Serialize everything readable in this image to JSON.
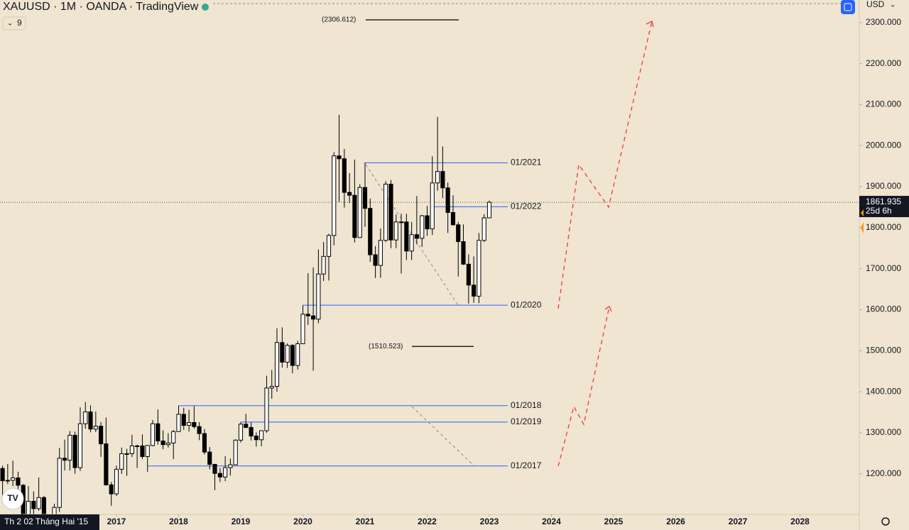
{
  "header": {
    "title": "XAUUSD · 1M · OANDA · TradingView",
    "indicator_count": "9",
    "currency": "USD",
    "crosshair_date": "Th 2 02 Tháng Hai '15"
  },
  "chart_data": {
    "type": "candlestick",
    "x": [
      2015.083,
      2015.167,
      2015.25,
      2015.333,
      2015.417,
      2015.5,
      2015.583,
      2015.667,
      2015.75,
      2015.833,
      2015.917,
      2016,
      2016.083,
      2016.167,
      2016.25,
      2016.333,
      2016.417,
      2016.5,
      2016.583,
      2016.667,
      2016.75,
      2016.833,
      2016.917,
      2017,
      2017.083,
      2017.167,
      2017.25,
      2017.333,
      2017.417,
      2017.5,
      2017.583,
      2017.667,
      2017.75,
      2017.833,
      2017.917,
      2018,
      2018.083,
      2018.167,
      2018.25,
      2018.333,
      2018.417,
      2018.5,
      2018.583,
      2018.667,
      2018.75,
      2018.833,
      2018.917,
      2019,
      2019.083,
      2019.167,
      2019.25,
      2019.333,
      2019.417,
      2019.5,
      2019.583,
      2019.667,
      2019.75,
      2019.833,
      2019.917,
      2020,
      2020.083,
      2020.167,
      2020.25,
      2020.333,
      2020.417,
      2020.5,
      2020.583,
      2020.667,
      2020.75,
      2020.833,
      2020.917,
      2021,
      2021.083,
      2021.167,
      2021.25,
      2021.333,
      2021.417,
      2021.5,
      2021.583,
      2021.667,
      2021.75,
      2021.833,
      2021.917,
      2022,
      2022.083,
      2022.167,
      2022.25,
      2022.333,
      2022.417,
      2022.5,
      2022.583,
      2022.667,
      2022.75,
      2022.833,
      2022.917,
      2023
    ],
    "open": [
      1283,
      1213,
      1183,
      1184,
      1190,
      1172,
      1095,
      1133,
      1115,
      1142,
      1065,
      1061,
      1118,
      1238,
      1233,
      1294,
      1215,
      1322,
      1351,
      1309,
      1316,
      1273,
      1173,
      1151,
      1211,
      1249,
      1249,
      1268,
      1268,
      1242,
      1269,
      1322,
      1280,
      1271,
      1275,
      1303,
      1345,
      1318,
      1325,
      1315,
      1298,
      1253,
      1223,
      1201,
      1192,
      1215,
      1222,
      1282,
      1321,
      1313,
      1292,
      1283,
      1305,
      1409,
      1413,
      1520,
      1472,
      1513,
      1464,
      1517,
      1589,
      1585,
      1577,
      1687,
      1730,
      1781,
      1975,
      1968,
      1886,
      1879,
      1776,
      1898,
      1847,
      1734,
      1708,
      1769,
      1906,
      1770,
      1814,
      1814,
      1743,
      1783,
      1774,
      1829,
      1797,
      1909,
      1937,
      1897,
      1837,
      1807,
      1766,
      1711,
      1660,
      1633,
      1769,
      1824
    ],
    "high": [
      1308,
      1220,
      1224,
      1232,
      1205,
      1175,
      1170,
      1157,
      1191,
      1146,
      1088,
      1127,
      1263,
      1283,
      1304,
      1303,
      1362,
      1375,
      1367,
      1352,
      1326,
      1337,
      1180,
      1220,
      1264,
      1261,
      1295,
      1271,
      1296,
      1270,
      1331,
      1357,
      1306,
      1299,
      1307,
      1366,
      1361,
      1356,
      1365,
      1326,
      1309,
      1265,
      1224,
      1214,
      1243,
      1237,
      1284,
      1326,
      1346,
      1325,
      1301,
      1305,
      1439,
      1453,
      1555,
      1557,
      1518,
      1516,
      1524,
      1611,
      1689,
      1703,
      1747,
      1765,
      1785,
      1984,
      2075,
      1992,
      1933,
      1966,
      1906,
      1959,
      1871,
      1755,
      1798,
      1913,
      1916,
      1832,
      1834,
      1834,
      1814,
      1877,
      1831,
      1853,
      1974,
      2070,
      1998,
      1910,
      1879,
      1814,
      1808,
      1735,
      1730,
      1787,
      1833,
      1866
    ],
    "low": [
      1198,
      1142,
      1175,
      1170,
      1162,
      1077,
      1080,
      1098,
      1110,
      1052,
      1046,
      1062,
      1107,
      1208,
      1208,
      1200,
      1207,
      1310,
      1301,
      1302,
      1241,
      1171,
      1122,
      1146,
      1200,
      1195,
      1241,
      1214,
      1236,
      1205,
      1267,
      1271,
      1260,
      1264,
      1236,
      1302,
      1307,
      1303,
      1310,
      1282,
      1247,
      1211,
      1160,
      1180,
      1182,
      1196,
      1221,
      1276,
      1311,
      1281,
      1266,
      1267,
      1300,
      1383,
      1400,
      1459,
      1458,
      1445,
      1454,
      1517,
      1563,
      1451,
      1567,
      1670,
      1671,
      1757,
      1863,
      1849,
      1860,
      1764,
      1775,
      1802,
      1717,
      1677,
      1678,
      1765,
      1750,
      1750,
      1688,
      1721,
      1721,
      1759,
      1753,
      1780,
      1782,
      1890,
      1872,
      1787,
      1805,
      1681,
      1709,
      1615,
      1617,
      1616,
      1765,
      1823
    ],
    "close": [
      1213,
      1183,
      1184,
      1190,
      1172,
      1095,
      1133,
      1115,
      1142,
      1065,
      1061,
      1118,
      1238,
      1233,
      1294,
      1215,
      1322,
      1351,
      1309,
      1316,
      1273,
      1173,
      1151,
      1211,
      1249,
      1249,
      1268,
      1268,
      1242,
      1269,
      1322,
      1280,
      1271,
      1275,
      1303,
      1345,
      1318,
      1325,
      1315,
      1298,
      1253,
      1223,
      1201,
      1192,
      1215,
      1222,
      1282,
      1321,
      1313,
      1292,
      1283,
      1305,
      1409,
      1413,
      1520,
      1472,
      1513,
      1464,
      1517,
      1589,
      1585,
      1577,
      1687,
      1730,
      1781,
      1975,
      1968,
      1886,
      1879,
      1776,
      1898,
      1847,
      1734,
      1708,
      1769,
      1906,
      1770,
      1814,
      1814,
      1743,
      1783,
      1774,
      1829,
      1797,
      1909,
      1937,
      1897,
      1837,
      1807,
      1766,
      1711,
      1660,
      1633,
      1769,
      1824,
      1861.935
    ],
    "up_color": "#ffffff",
    "down_color": "#000000",
    "wick_color": "#000000",
    "xlim": [
      2015.126,
      2028.954
    ],
    "xticks": [
      2017,
      2018,
      2019,
      2020,
      2021,
      2022,
      2023,
      2024,
      2025,
      2026,
      2027,
      2028
    ],
    "ylim": [
      1101,
      2355
    ],
    "yticks": [
      {
        "value": 1200,
        "label": "1200.000"
      },
      {
        "value": 1300,
        "label": "1300.000"
      },
      {
        "value": 1400,
        "label": "1400.000"
      },
      {
        "value": 1500,
        "label": "1500.000"
      },
      {
        "value": 1600,
        "label": "1600.000"
      },
      {
        "value": 1700,
        "label": "1700.000"
      },
      {
        "value": 1800,
        "label": "1800.000"
      },
      {
        "value": 1900,
        "label": "1900.000"
      },
      {
        "value": 2000,
        "label": "2000.000"
      },
      {
        "value": 2100,
        "label": "2100.000"
      },
      {
        "value": 2200,
        "label": "2200.000"
      },
      {
        "value": 2300,
        "label": "2300.000"
      }
    ],
    "grid": false,
    "levels": [
      {
        "label": "01/2021",
        "value": 1958,
        "start": 2021,
        "color": "#2962ff"
      },
      {
        "label": "01/2022",
        "value": 1851,
        "start": 2022.1,
        "color": "#2962ff"
      },
      {
        "label": "01/2020",
        "value": 1611,
        "start": 2020,
        "color": "#2962ff"
      },
      {
        "label": "01/2018",
        "value": 1366,
        "start": 2018,
        "color": "#2962ff"
      },
      {
        "label": "01/2019",
        "value": 1326,
        "start": 2019,
        "color": "#2962ff"
      },
      {
        "label": "01/2017",
        "value": 1219,
        "start": 2017.5,
        "color": "#2962ff"
      }
    ],
    "annotations": [
      {
        "label": "(2306.612)",
        "value": 2306.612
      },
      {
        "label": "(1510.523)",
        "value": 1510.523
      }
    ],
    "last_price": {
      "value": 1861.935,
      "countdown": "25d 6h"
    }
  }
}
